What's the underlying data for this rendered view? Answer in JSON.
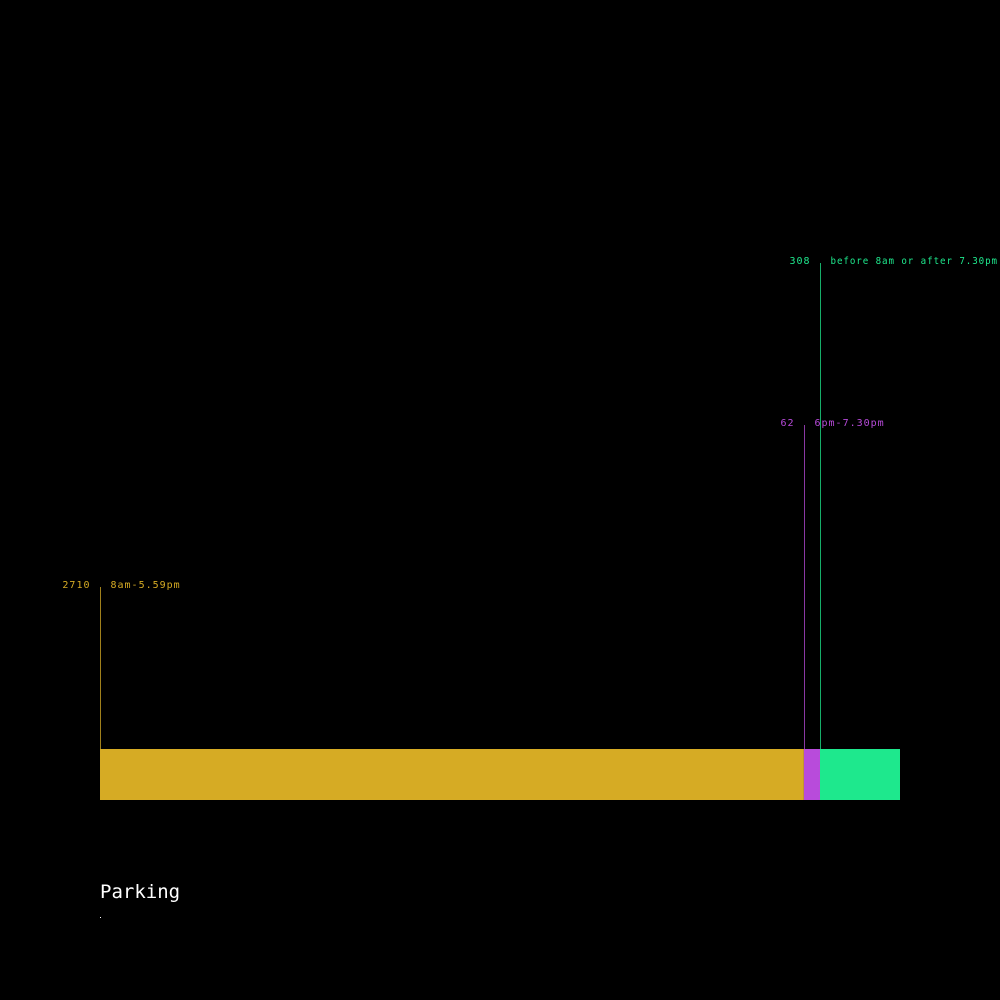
{
  "chart_data": {
    "type": "bar",
    "stacked": true,
    "orientation": "horizontal",
    "title": "Parking",
    "segments": [
      {
        "label": "8am-5.59pm",
        "value": 2710,
        "color": "#d6ab24"
      },
      {
        "label": "6pm-7.30pm",
        "value": 62,
        "color": "#b84bdb"
      },
      {
        "label": "before 8am or after 7.30pm",
        "value": 308,
        "color": "#1ee88d"
      }
    ],
    "legend": "none",
    "grid": false
  }
}
